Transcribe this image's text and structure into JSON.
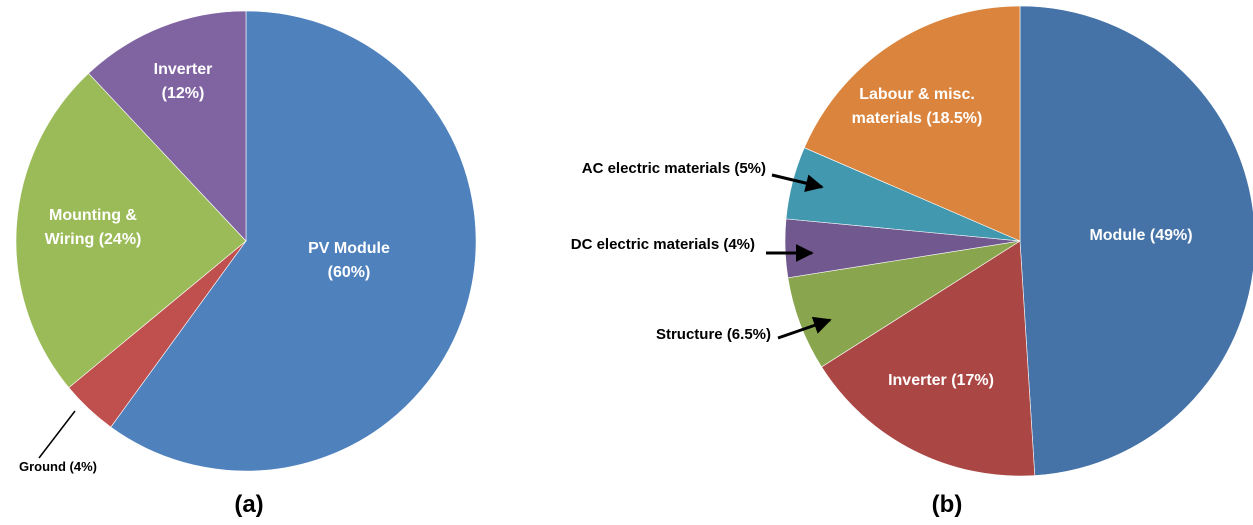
{
  "chart_data": [
    {
      "type": "pie",
      "panel_label": "(a)",
      "slices": [
        {
          "label": "PV Module",
          "label_line2": "(60%)",
          "value": 60,
          "color": "#4F81BD",
          "label_pos": "inside"
        },
        {
          "label": "Ground (4%)",
          "value": 4,
          "color": "#C0504D",
          "label_pos": "outside"
        },
        {
          "label": "Mounting &",
          "label_line2": "Wiring (24%)",
          "value": 24,
          "color": "#9BBB59",
          "label_pos": "inside"
        },
        {
          "label": "Inverter",
          "label_line2": "(12%)",
          "value": 12,
          "color": "#8064A2",
          "label_pos": "inside"
        }
      ]
    },
    {
      "type": "pie",
      "panel_label": "(b)",
      "slices": [
        {
          "label": "Module (49%)",
          "value": 49,
          "color": "#4572A7",
          "label_pos": "inside"
        },
        {
          "label": "Inverter (17%)",
          "value": 17,
          "color": "#AA4643",
          "label_pos": "inside"
        },
        {
          "label": "Structure (6.5%)",
          "value": 6.5,
          "color": "#89A54E",
          "label_pos": "outside"
        },
        {
          "label": "DC electric materials (4%)",
          "value": 4,
          "color": "#71588F",
          "label_pos": "outside"
        },
        {
          "label": "AC electric materials (5%)",
          "value": 5,
          "color": "#4198AF",
          "label_pos": "outside"
        },
        {
          "label": "Labour & misc.",
          "label_line2": "materials (18.5%)",
          "value": 18.5,
          "color": "#DB843D",
          "label_pos": "inside"
        }
      ]
    }
  ]
}
